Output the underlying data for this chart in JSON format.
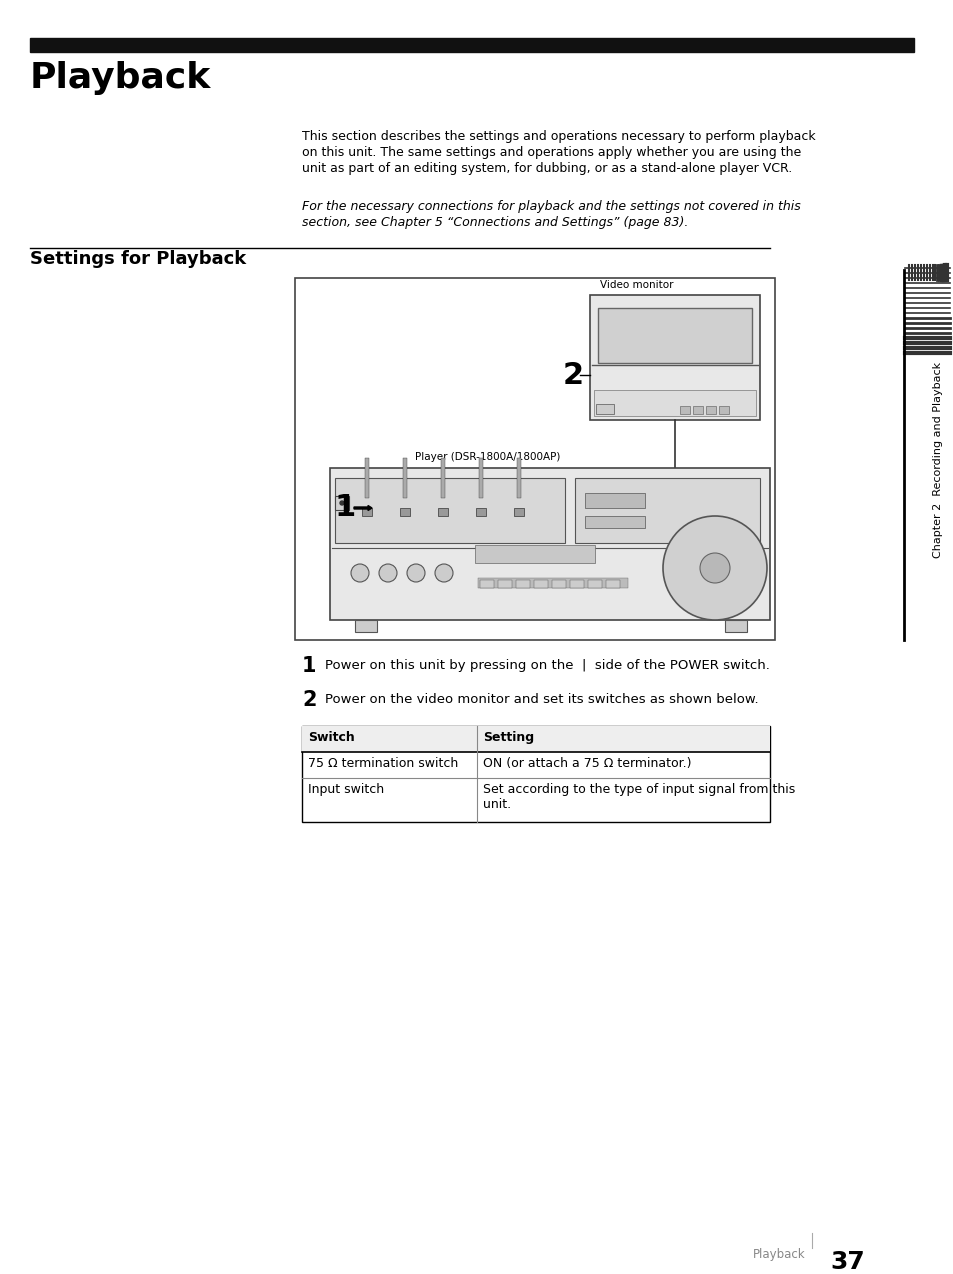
{
  "title": "Playback",
  "section_title": "Settings for Playback",
  "body_text_lines": [
    "This section describes the settings and operations necessary to perform playback",
    "on this unit. The same settings and operations apply whether you are using the",
    "unit as part of an editing system, for dubbing, or as a stand-alone player VCR."
  ],
  "italic_text_lines": [
    "For the necessary connections for playback and the settings not covered in this",
    "section, see Chapter 5 “Connections and Settings” (page 83)."
  ],
  "step1_num": "1",
  "step1_text": "Power on this unit by pressing on the  |  side of the POWER switch.",
  "step2_num": "2",
  "step2_text": "Power on the video monitor and set its switches as shown below.",
  "table_header": [
    "Switch",
    "Setting"
  ],
  "table_row1_col1": "75 Ω termination switch",
  "table_row1_col2": "ON (or attach a 75 Ω terminator.)",
  "table_row2_col1": "Input switch",
  "table_row2_col2_line1": "Set according to the type of input signal from this",
  "table_row2_col2_line2": "unit.",
  "sidebar_text": "Chapter 2  Recording and Playback",
  "video_monitor_label": "Video monitor",
  "player_label": "Player (DSR-1800A/1800AP)",
  "label_1": "1",
  "label_2": "2",
  "page_label": "Playback",
  "page_number": "37",
  "bg_color": "#ffffff",
  "text_color": "#000000",
  "bar_color": "#111111",
  "gray_light": "#cccccc",
  "gray_mid": "#999999",
  "gray_dark": "#555555",
  "sidebar_line_color": "#333333"
}
